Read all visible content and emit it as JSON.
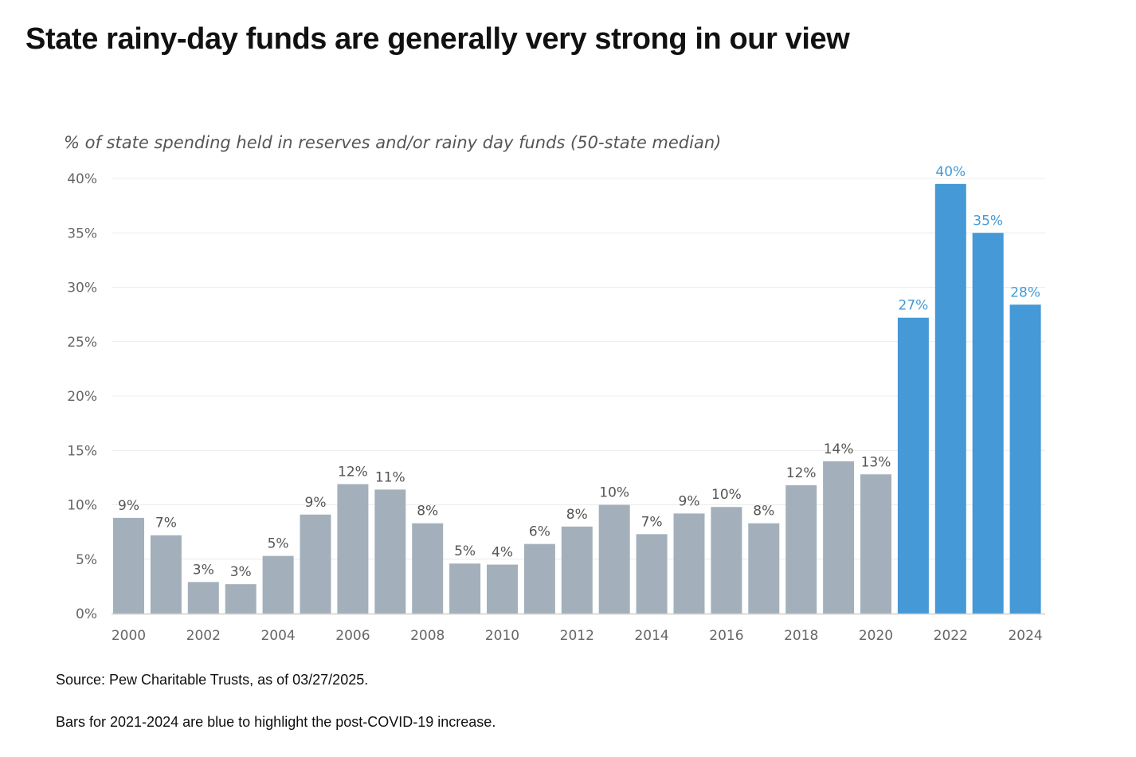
{
  "page": {
    "title": "State rainy-day funds are generally very strong in our view",
    "source": "Source: Pew Charitable Trusts, as of 03/27/2025.",
    "note": "Bars for 2021-2024 are blue to highlight the post-COVID-19 increase."
  },
  "chart_data": {
    "type": "bar",
    "subtitle": "% of state spending held in reserves and/or rainy day funds (50-state median)",
    "categories": [
      "2000",
      "2001",
      "2002",
      "2003",
      "2004",
      "2005",
      "2006",
      "2007",
      "2008",
      "2009",
      "2010",
      "2011",
      "2012",
      "2013",
      "2014",
      "2015",
      "2016",
      "2017",
      "2018",
      "2019",
      "2020",
      "2021",
      "2022",
      "2023",
      "2024"
    ],
    "values": [
      8.8,
      7.2,
      2.9,
      2.7,
      5.3,
      9.1,
      11.9,
      11.4,
      8.3,
      4.6,
      4.5,
      6.4,
      8.0,
      10.0,
      7.3,
      9.2,
      9.8,
      8.3,
      11.8,
      14.0,
      12.8,
      27.2,
      39.5,
      35.0,
      28.4
    ],
    "data_labels": [
      "9%",
      "7%",
      "3%",
      "3%",
      "5%",
      "9%",
      "12%",
      "11%",
      "8%",
      "5%",
      "4%",
      "6%",
      "8%",
      "10%",
      "7%",
      "9%",
      "10%",
      "8%",
      "12%",
      "14%",
      "13%",
      "27%",
      "40%",
      "35%",
      "28%"
    ],
    "x_tick_labels": [
      "2000",
      "",
      "2002",
      "",
      "2004",
      "",
      "2006",
      "",
      "2008",
      "",
      "2010",
      "",
      "2012",
      "",
      "2014",
      "",
      "2016",
      "",
      "2018",
      "",
      "2020",
      "",
      "2022",
      "",
      "2024"
    ],
    "highlight_indices": [
      21,
      22,
      23,
      24
    ],
    "y_ticks": [
      0,
      5,
      10,
      15,
      20,
      25,
      30,
      35,
      40
    ],
    "y_tick_labels": [
      "0%",
      "5%",
      "10%",
      "15%",
      "20%",
      "25%",
      "30%",
      "35%",
      "40%"
    ],
    "ylim": [
      0,
      40
    ],
    "grid": true,
    "colors": {
      "base_bar": "#a3b0bb",
      "highlight_bar": "#4499d6",
      "base_label": "#555555",
      "highlight_label": "#4499d6",
      "grid": "#ececec",
      "axis": "#cfcfcf"
    }
  }
}
